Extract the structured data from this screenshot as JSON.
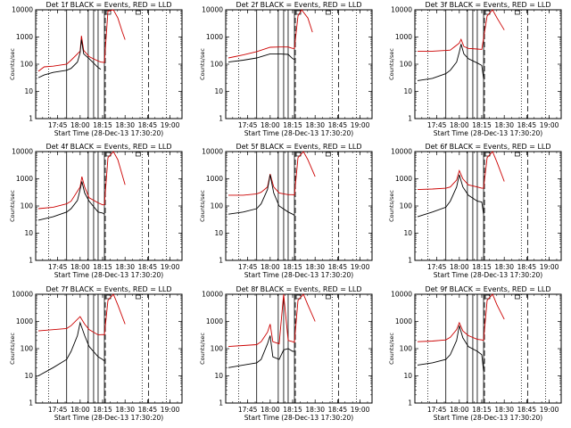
{
  "chart_data": {
    "type": "line",
    "ylabel": "Counts/sec",
    "ylim": [
      1,
      10000
    ],
    "yscale": "log",
    "ytick_labels": [
      "1",
      "10",
      "100",
      "1000",
      "10000"
    ],
    "xlim": [
      "17:30:20",
      "19:08:00"
    ],
    "xtick_labels": [
      "17:45",
      "18:00",
      "18:15",
      "18:30",
      "18:45",
      "19:00"
    ],
    "xlabel": "Start Time (28-Dec-13 17:30:20)",
    "series_colors": {
      "events": "#000000",
      "lld": "#cc0000"
    },
    "panels": [
      {
        "title": "Det 1f BLACK = Events, RED = LLD",
        "events": [
          [
            17.535,
            32
          ],
          [
            17.6,
            40
          ],
          [
            17.7,
            50
          ],
          [
            17.85,
            60
          ],
          [
            17.9,
            70
          ],
          [
            17.97,
            120
          ],
          [
            18.0,
            260
          ],
          [
            18.015,
            800
          ],
          [
            18.04,
            240
          ],
          [
            18.1,
            160
          ],
          [
            18.2,
            75
          ],
          [
            18.23,
            65
          ]
        ],
        "lld": [
          [
            17.535,
            55
          ],
          [
            17.6,
            80
          ],
          [
            17.7,
            85
          ],
          [
            17.85,
            100
          ],
          [
            17.9,
            140
          ],
          [
            18.0,
            300
          ],
          [
            18.015,
            1100
          ],
          [
            18.04,
            320
          ],
          [
            18.1,
            190
          ],
          [
            18.2,
            130
          ],
          [
            18.23,
            120
          ],
          [
            18.27,
            115
          ],
          [
            18.31,
            9000
          ],
          [
            18.37,
            10000
          ],
          [
            18.42,
            5000
          ],
          [
            18.47,
            1500
          ],
          [
            18.5,
            800
          ]
        ]
      },
      {
        "title": "Det 2f BLACK = Events, RED = LLD",
        "events": [
          [
            17.535,
            120
          ],
          [
            17.7,
            140
          ],
          [
            17.85,
            170
          ],
          [
            18.0,
            240
          ],
          [
            18.1,
            240
          ],
          [
            18.2,
            230
          ],
          [
            18.25,
            160
          ],
          [
            18.27,
            150
          ]
        ],
        "lld": [
          [
            17.535,
            170
          ],
          [
            17.7,
            220
          ],
          [
            17.85,
            290
          ],
          [
            18.0,
            420
          ],
          [
            18.1,
            430
          ],
          [
            18.2,
            430
          ],
          [
            18.25,
            380
          ],
          [
            18.27,
            380
          ],
          [
            18.31,
            6000
          ],
          [
            18.35,
            10000
          ],
          [
            18.42,
            5000
          ],
          [
            18.47,
            1500
          ]
        ]
      },
      {
        "title": "Det 3f BLACK = Events, RED = LLD",
        "events": [
          [
            17.535,
            25
          ],
          [
            17.7,
            30
          ],
          [
            17.85,
            45
          ],
          [
            17.9,
            60
          ],
          [
            17.97,
            120
          ],
          [
            18.0,
            280
          ],
          [
            18.02,
            550
          ],
          [
            18.05,
            240
          ],
          [
            18.1,
            160
          ],
          [
            18.2,
            110
          ],
          [
            18.25,
            90
          ],
          [
            18.27,
            30
          ]
        ],
        "lld": [
          [
            17.535,
            300
          ],
          [
            17.7,
            300
          ],
          [
            17.85,
            320
          ],
          [
            17.9,
            330
          ],
          [
            18.0,
            600
          ],
          [
            18.02,
            820
          ],
          [
            18.05,
            450
          ],
          [
            18.1,
            380
          ],
          [
            18.2,
            360
          ],
          [
            18.25,
            350
          ],
          [
            18.31,
            6000
          ],
          [
            18.37,
            10000
          ],
          [
            18.42,
            5000
          ],
          [
            18.5,
            1800
          ]
        ]
      },
      {
        "title": "Det 4f BLACK = Events, RED = LLD",
        "events": [
          [
            17.535,
            30
          ],
          [
            17.7,
            40
          ],
          [
            17.85,
            60
          ],
          [
            17.9,
            80
          ],
          [
            17.97,
            160
          ],
          [
            18.0,
            400
          ],
          [
            18.02,
            800
          ],
          [
            18.05,
            300
          ],
          [
            18.1,
            150
          ],
          [
            18.2,
            60
          ],
          [
            18.25,
            55
          ],
          [
            18.27,
            50
          ]
        ],
        "lld": [
          [
            17.535,
            80
          ],
          [
            17.7,
            90
          ],
          [
            17.85,
            120
          ],
          [
            17.9,
            150
          ],
          [
            18.0,
            500
          ],
          [
            18.02,
            1200
          ],
          [
            18.05,
            500
          ],
          [
            18.1,
            200
          ],
          [
            18.2,
            130
          ],
          [
            18.25,
            110
          ],
          [
            18.27,
            110
          ],
          [
            18.31,
            6000
          ],
          [
            18.37,
            10000
          ],
          [
            18.42,
            5000
          ],
          [
            18.5,
            600
          ]
        ]
      },
      {
        "title": "Det 5f BLACK = Events, RED = LLD",
        "events": [
          [
            17.535,
            50
          ],
          [
            17.7,
            60
          ],
          [
            17.85,
            80
          ],
          [
            17.9,
            120
          ],
          [
            17.97,
            400
          ],
          [
            18.0,
            1400
          ],
          [
            18.04,
            300
          ],
          [
            18.1,
            100
          ],
          [
            18.2,
            60
          ],
          [
            18.25,
            50
          ],
          [
            18.27,
            45
          ]
        ],
        "lld": [
          [
            17.535,
            250
          ],
          [
            17.7,
            250
          ],
          [
            17.85,
            280
          ],
          [
            17.9,
            320
          ],
          [
            17.97,
            500
          ],
          [
            18.0,
            1500
          ],
          [
            18.04,
            500
          ],
          [
            18.1,
            300
          ],
          [
            18.2,
            260
          ],
          [
            18.25,
            260
          ],
          [
            18.27,
            250
          ],
          [
            18.31,
            6000
          ],
          [
            18.37,
            10000
          ],
          [
            18.42,
            5000
          ],
          [
            18.5,
            1200
          ]
        ]
      },
      {
        "title": "Det 6f BLACK = Events, RED = LLD",
        "events": [
          [
            17.535,
            40
          ],
          [
            17.7,
            60
          ],
          [
            17.85,
            90
          ],
          [
            17.9,
            150
          ],
          [
            17.97,
            500
          ],
          [
            18.0,
            1400
          ],
          [
            18.04,
            500
          ],
          [
            18.1,
            250
          ],
          [
            18.2,
            150
          ],
          [
            18.25,
            140
          ],
          [
            18.27,
            50
          ]
        ],
        "lld": [
          [
            17.535,
            400
          ],
          [
            17.7,
            420
          ],
          [
            17.85,
            450
          ],
          [
            17.9,
            500
          ],
          [
            17.97,
            900
          ],
          [
            18.0,
            2000
          ],
          [
            18.04,
            1000
          ],
          [
            18.1,
            600
          ],
          [
            18.2,
            500
          ],
          [
            18.25,
            450
          ],
          [
            18.27,
            450
          ],
          [
            18.31,
            6000
          ],
          [
            18.37,
            10000
          ],
          [
            18.42,
            4000
          ],
          [
            18.5,
            800
          ]
        ]
      },
      {
        "title": "Det 7f BLACK = Events, RED = LLD",
        "events": [
          [
            17.535,
            10
          ],
          [
            17.7,
            20
          ],
          [
            17.85,
            40
          ],
          [
            17.9,
            80
          ],
          [
            17.97,
            300
          ],
          [
            18.0,
            900
          ],
          [
            18.05,
            300
          ],
          [
            18.1,
            120
          ],
          [
            18.2,
            50
          ],
          [
            18.25,
            40
          ],
          [
            18.27,
            35
          ]
        ],
        "lld": [
          [
            17.535,
            450
          ],
          [
            17.7,
            500
          ],
          [
            17.85,
            550
          ],
          [
            17.9,
            700
          ],
          [
            17.97,
            1200
          ],
          [
            18.0,
            1500
          ],
          [
            18.05,
            800
          ],
          [
            18.1,
            500
          ],
          [
            18.2,
            320
          ],
          [
            18.25,
            330
          ],
          [
            18.27,
            320
          ],
          [
            18.31,
            6000
          ],
          [
            18.37,
            10000
          ],
          [
            18.42,
            4000
          ],
          [
            18.5,
            800
          ]
        ]
      },
      {
        "title": "Det 8f BLACK = Events, RED = LLD",
        "events": [
          [
            17.535,
            20
          ],
          [
            17.7,
            25
          ],
          [
            17.85,
            30
          ],
          [
            17.9,
            40
          ],
          [
            17.97,
            150
          ],
          [
            18.0,
            300
          ],
          [
            18.03,
            50
          ],
          [
            18.1,
            40
          ],
          [
            18.15,
            90
          ],
          [
            18.2,
            100
          ],
          [
            18.25,
            80
          ],
          [
            18.27,
            80
          ]
        ],
        "lld": [
          [
            17.535,
            120
          ],
          [
            17.7,
            130
          ],
          [
            17.85,
            140
          ],
          [
            17.9,
            180
          ],
          [
            17.97,
            400
          ],
          [
            18.0,
            800
          ],
          [
            18.03,
            180
          ],
          [
            18.1,
            150
          ],
          [
            18.15,
            10000
          ],
          [
            18.2,
            200
          ],
          [
            18.25,
            180
          ],
          [
            18.27,
            170
          ],
          [
            18.31,
            6000
          ],
          [
            18.37,
            10000
          ],
          [
            18.42,
            4000
          ],
          [
            18.5,
            1000
          ]
        ]
      },
      {
        "title": "Det 9f BLACK = Events, RED = LLD",
        "events": [
          [
            17.535,
            25
          ],
          [
            17.7,
            30
          ],
          [
            17.85,
            40
          ],
          [
            17.9,
            60
          ],
          [
            17.97,
            200
          ],
          [
            18.0,
            700
          ],
          [
            18.04,
            250
          ],
          [
            18.1,
            120
          ],
          [
            18.2,
            80
          ],
          [
            18.25,
            60
          ],
          [
            18.27,
            15
          ]
        ],
        "lld": [
          [
            17.535,
            180
          ],
          [
            17.7,
            190
          ],
          [
            17.85,
            210
          ],
          [
            17.9,
            260
          ],
          [
            17.97,
            500
          ],
          [
            18.0,
            900
          ],
          [
            18.04,
            450
          ],
          [
            18.1,
            300
          ],
          [
            18.2,
            220
          ],
          [
            18.25,
            210
          ],
          [
            18.27,
            200
          ],
          [
            18.31,
            6000
          ],
          [
            18.37,
            10000
          ],
          [
            18.42,
            4000
          ],
          [
            18.5,
            1200
          ]
        ]
      }
    ]
  }
}
